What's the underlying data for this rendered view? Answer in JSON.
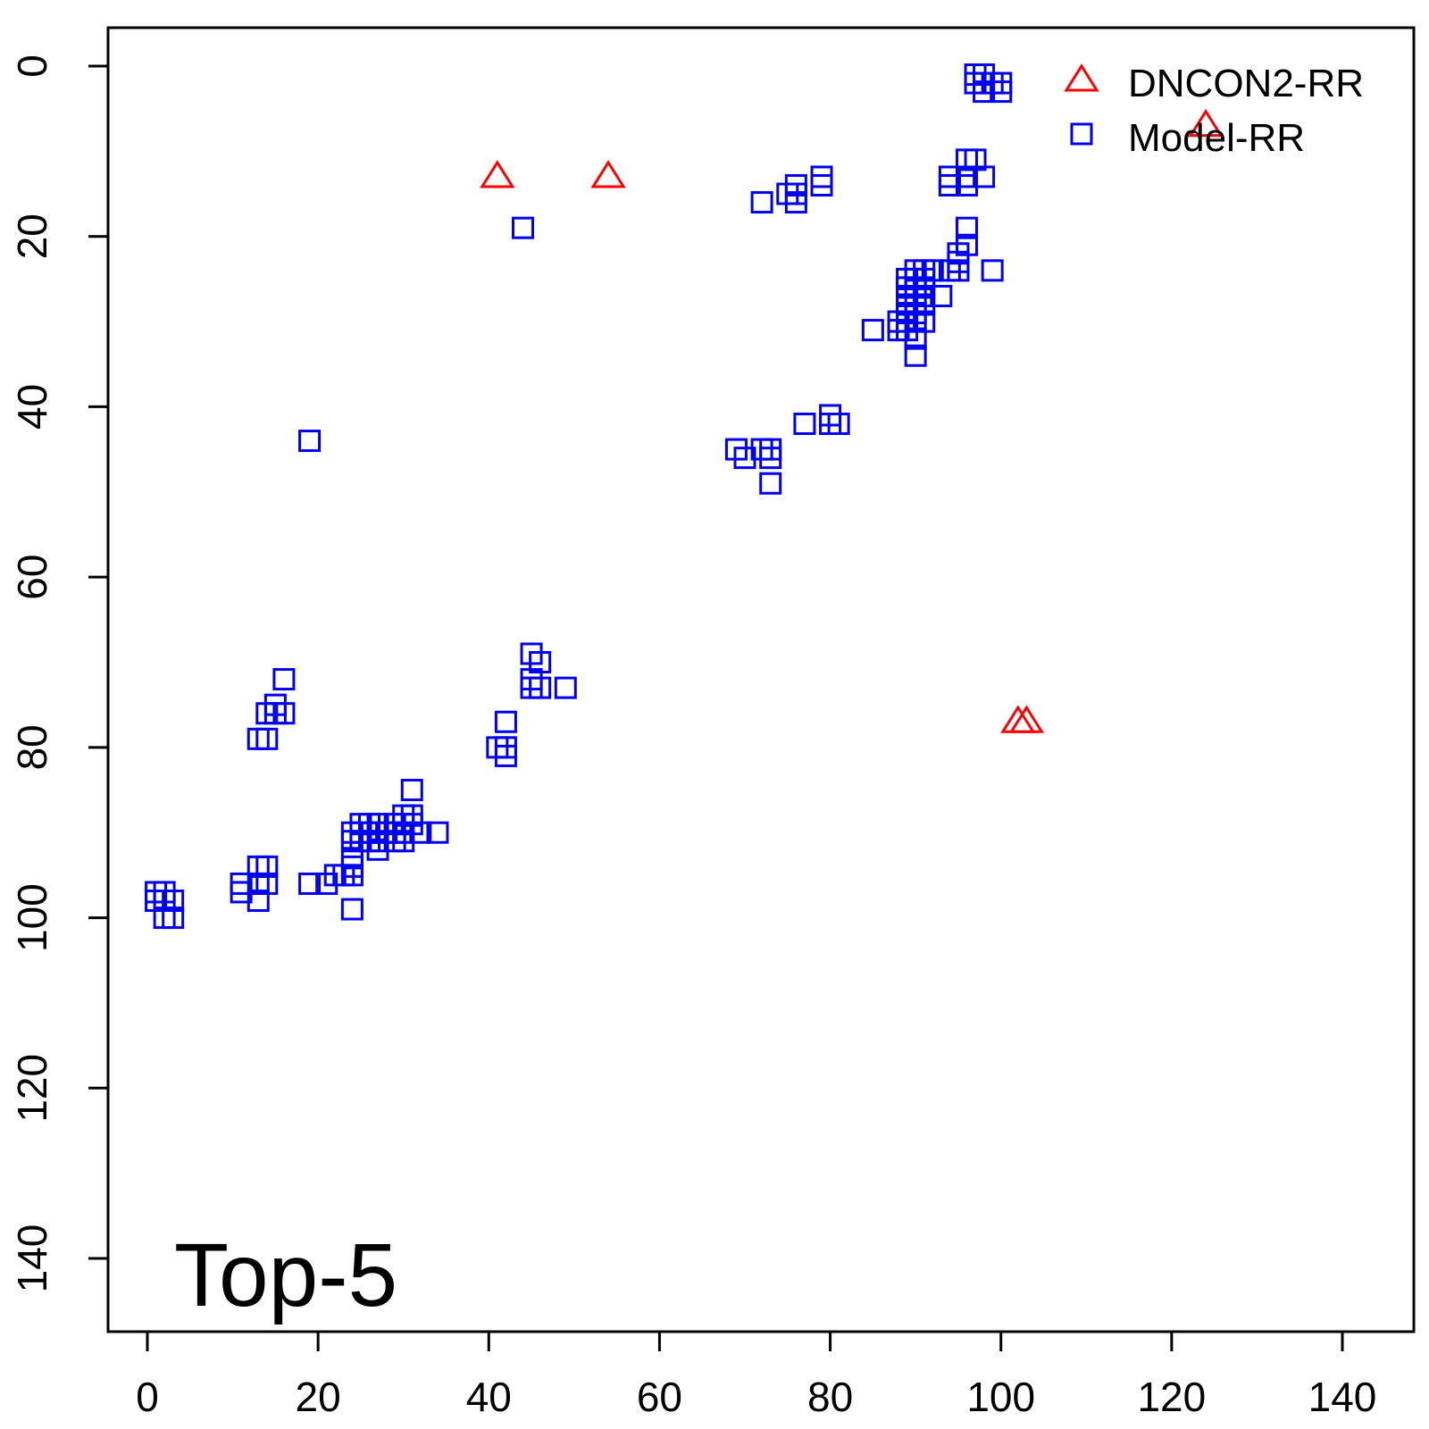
{
  "chart_data": {
    "type": "scatter",
    "panel_label": "Top-5",
    "xlabel": "",
    "ylabel": "",
    "xlim": [
      -2,
      148
    ],
    "ylim": [
      148,
      -5
    ],
    "y_reversed": true,
    "x_ticks": [
      0,
      20,
      40,
      60,
      80,
      100,
      120,
      140
    ],
    "y_ticks": [
      0,
      20,
      40,
      60,
      80,
      100,
      120,
      140
    ],
    "legend_position": "top-right",
    "grid": false,
    "series": [
      {
        "name": "DNCON2-RR",
        "marker": "triangle",
        "color": "#ff0000",
        "points": [
          [
            41,
            13
          ],
          [
            54,
            13
          ],
          [
            124,
            7
          ],
          [
            102,
            77
          ],
          [
            103,
            77
          ]
        ]
      },
      {
        "name": "Model-RR",
        "marker": "square",
        "color": "#0000ee",
        "points": [
          [
            97,
            1
          ],
          [
            98,
            1
          ],
          [
            97,
            2
          ],
          [
            98,
            2
          ],
          [
            99,
            2
          ],
          [
            100,
            2
          ],
          [
            98,
            3
          ],
          [
            100,
            3
          ],
          [
            96,
            11
          ],
          [
            97,
            11
          ],
          [
            94,
            13
          ],
          [
            96,
            13
          ],
          [
            98,
            13
          ],
          [
            94,
            14
          ],
          [
            96,
            14
          ],
          [
            79,
            13
          ],
          [
            79,
            14
          ],
          [
            76,
            14
          ],
          [
            75,
            15
          ],
          [
            76,
            15
          ],
          [
            72,
            16
          ],
          [
            76,
            16
          ],
          [
            44,
            19
          ],
          [
            96,
            19
          ],
          [
            96,
            21
          ],
          [
            95,
            22
          ],
          [
            95,
            23
          ],
          [
            94,
            24
          ],
          [
            95,
            24
          ],
          [
            99,
            24
          ],
          [
            90,
            24
          ],
          [
            91,
            24
          ],
          [
            92,
            24
          ],
          [
            89,
            25
          ],
          [
            90,
            25
          ],
          [
            91,
            25
          ],
          [
            89,
            26
          ],
          [
            90,
            26
          ],
          [
            91,
            26
          ],
          [
            89,
            27
          ],
          [
            91,
            27
          ],
          [
            93,
            27
          ],
          [
            89,
            28
          ],
          [
            90,
            28
          ],
          [
            91,
            28
          ],
          [
            89,
            29
          ],
          [
            90,
            29
          ],
          [
            88,
            30
          ],
          [
            89,
            30
          ],
          [
            90,
            30
          ],
          [
            91,
            30
          ],
          [
            85,
            31
          ],
          [
            88,
            31
          ],
          [
            89,
            31
          ],
          [
            90,
            32
          ],
          [
            90,
            34
          ],
          [
            80,
            41
          ],
          [
            77,
            42
          ],
          [
            80,
            42
          ],
          [
            81,
            42
          ],
          [
            19,
            44
          ],
          [
            69,
            45
          ],
          [
            72,
            45
          ],
          [
            73,
            45
          ],
          [
            70,
            46
          ],
          [
            73,
            46
          ],
          [
            73,
            49
          ],
          [
            45,
            69
          ],
          [
            46,
            70
          ],
          [
            45,
            72
          ],
          [
            45,
            73
          ],
          [
            46,
            73
          ],
          [
            49,
            73
          ],
          [
            16,
            72
          ],
          [
            15,
            75
          ],
          [
            14,
            76
          ],
          [
            15,
            76
          ],
          [
            16,
            76
          ],
          [
            42,
            77
          ],
          [
            13,
            79
          ],
          [
            14,
            79
          ],
          [
            41,
            80
          ],
          [
            42,
            80
          ],
          [
            42,
            81
          ],
          [
            31,
            85
          ],
          [
            30,
            88
          ],
          [
            31,
            88
          ],
          [
            25,
            89
          ],
          [
            26,
            89
          ],
          [
            27,
            89
          ],
          [
            29,
            89
          ],
          [
            30,
            89
          ],
          [
            31,
            89
          ],
          [
            24,
            90
          ],
          [
            25,
            90
          ],
          [
            26,
            90
          ],
          [
            27,
            90
          ],
          [
            28,
            90
          ],
          [
            29,
            90
          ],
          [
            30,
            90
          ],
          [
            32,
            90
          ],
          [
            34,
            90
          ],
          [
            24,
            91
          ],
          [
            25,
            91
          ],
          [
            26,
            91
          ],
          [
            27,
            91
          ],
          [
            29,
            91
          ],
          [
            30,
            91
          ],
          [
            27,
            92
          ],
          [
            24,
            93
          ],
          [
            13,
            94
          ],
          [
            14,
            94
          ],
          [
            24,
            94
          ],
          [
            23,
            95
          ],
          [
            24,
            95
          ],
          [
            22,
            95
          ],
          [
            13,
            96
          ],
          [
            14,
            96
          ],
          [
            11,
            96
          ],
          [
            19,
            96
          ],
          [
            21,
            96
          ],
          [
            11,
            97
          ],
          [
            1,
            97
          ],
          [
            2,
            97
          ],
          [
            3,
            98
          ],
          [
            1,
            98
          ],
          [
            2,
            98
          ],
          [
            13,
            98
          ],
          [
            24,
            99
          ],
          [
            2,
            100
          ],
          [
            3,
            100
          ]
        ]
      }
    ]
  }
}
